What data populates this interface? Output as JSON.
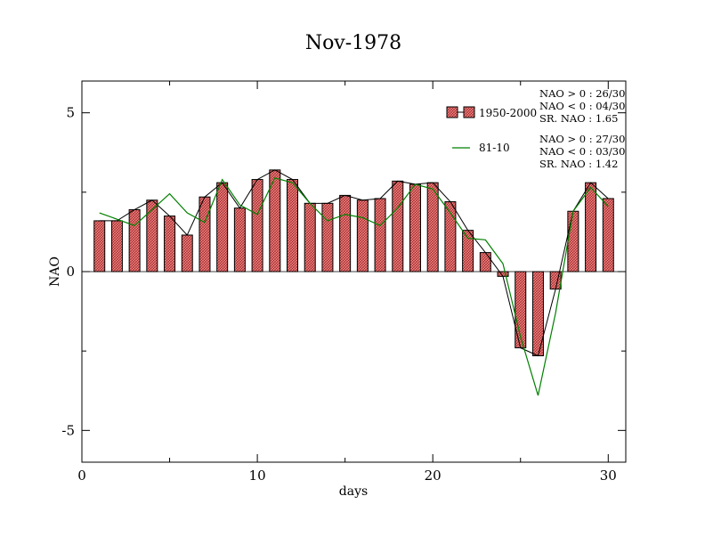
{
  "chart_data": {
    "type": "bar",
    "title": "Nov-1978",
    "xlabel": "days",
    "ylabel": "NAO",
    "xlim": [
      0,
      31
    ],
    "ylim": [
      -6,
      6
    ],
    "xticks": [
      "0",
      "10",
      "20",
      "30"
    ],
    "yticks": [
      "-5",
      "0",
      "5"
    ],
    "x": [
      1,
      2,
      3,
      4,
      5,
      6,
      7,
      8,
      9,
      10,
      11,
      12,
      13,
      14,
      15,
      16,
      17,
      18,
      19,
      20,
      21,
      22,
      23,
      24,
      25,
      26,
      27,
      28,
      29,
      30
    ],
    "series": [
      {
        "name": "1950-2000",
        "kind": "bar",
        "color": "#f08080",
        "values": [
          1.6,
          1.6,
          1.95,
          2.25,
          1.75,
          1.15,
          2.35,
          2.8,
          2.0,
          2.9,
          3.2,
          2.9,
          2.15,
          2.15,
          2.4,
          2.25,
          2.3,
          2.85,
          2.75,
          2.8,
          2.2,
          1.3,
          0.6,
          -0.15,
          -2.4,
          -2.65,
          -0.55,
          1.9,
          2.8,
          2.3
        ]
      },
      {
        "name": "81-10",
        "kind": "line",
        "color": "#008000",
        "values": [
          1.85,
          1.65,
          1.45,
          1.95,
          2.45,
          1.85,
          1.55,
          2.9,
          2.1,
          1.8,
          2.95,
          2.8,
          2.15,
          1.6,
          1.8,
          1.7,
          1.45,
          2.0,
          2.75,
          2.6,
          1.85,
          1.05,
          1.0,
          0.25,
          -2.05,
          -3.9,
          -1.3,
          1.9,
          2.65,
          2.05
        ]
      }
    ],
    "legend": [
      {
        "label": "1950-2000",
        "kind": "bar",
        "color": "#f08080"
      },
      {
        "label": "81-10",
        "kind": "line",
        "color": "#008000"
      }
    ],
    "legend_position": "top-right",
    "grid": false,
    "annotations": [
      [
        "NAO > 0 : 26/30",
        "NAO < 0 : 04/30",
        "SR. NAO :  1.65"
      ],
      [
        "NAO > 0 : 27/30",
        "NAO < 0 : 03/30",
        "SR. NAO :  1.42"
      ]
    ]
  }
}
